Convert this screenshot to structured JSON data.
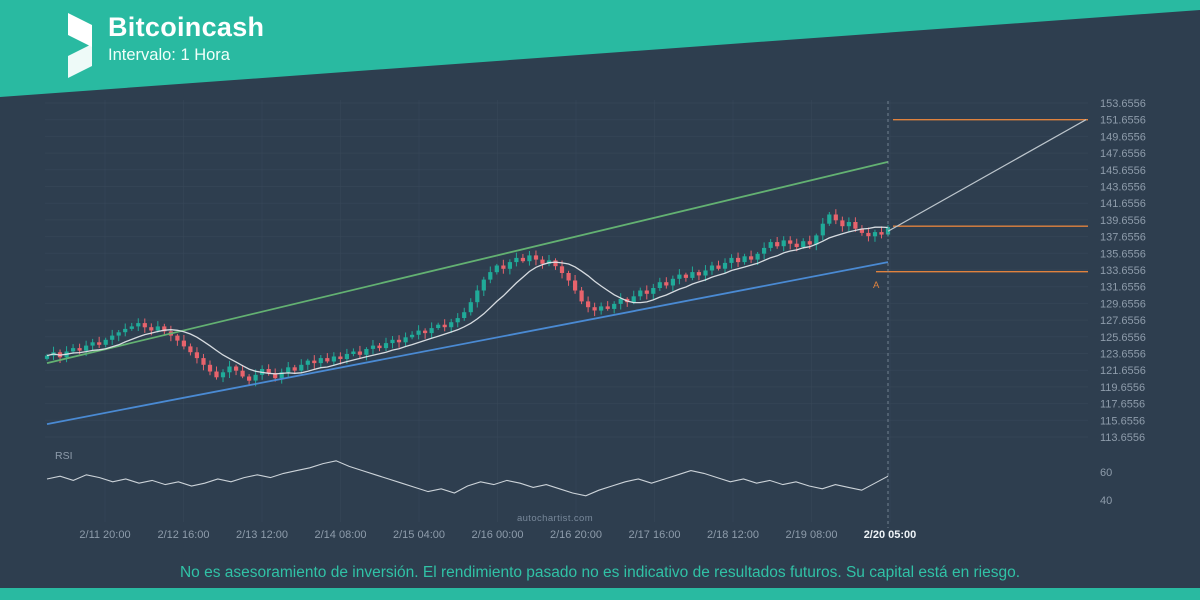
{
  "header": {
    "title": "Bitcoincash",
    "subtitle": "Intervalo: 1 Hora"
  },
  "watermark": "autochartist.com",
  "rsi_label": "RSI",
  "point_label": "A",
  "footer": {
    "disclaimer": "No es asesoramiento de inversión. El rendimiento pasado no es indicativo de resultados futuros. Su capital está en riesgo."
  },
  "colors": {
    "background": "#2e3e4f",
    "banner": "#29baa1",
    "candle_up": "#20ab99",
    "candle_down": "#e8636c",
    "trend_upper": "#63b172",
    "trend_lower": "#4a8ad3",
    "level_line": "#e0823e",
    "forecast": "#bcc5cc",
    "ma_line": "#dfe4e8",
    "rsi_line": "#ccd3d9",
    "axis_text": "#8e9cab",
    "axis_text_highlight": "#eef3f7",
    "grid": "#39495a",
    "divider": "#8b99a7",
    "watermark_text": "#78889a",
    "disclaimer_text": "#30c2a6"
  },
  "chart_data": {
    "type": "candlestick",
    "title": "Bitcoincash",
    "interval": "1 Hora",
    "price_axis": {
      "min": 113.6556,
      "max": 153.6556,
      "step": 2,
      "labels": [
        "153.6556",
        "151.6556",
        "149.6556",
        "147.6556",
        "145.6556",
        "143.6556",
        "141.6556",
        "139.6556",
        "137.6556",
        "135.6556",
        "133.6556",
        "131.6556",
        "129.6556",
        "127.6556",
        "125.6556",
        "123.6556",
        "121.6556",
        "119.6556",
        "117.6556",
        "115.6556",
        "113.6556"
      ]
    },
    "x_axis": {
      "labels": [
        "2/11 20:00",
        "2/12 16:00",
        "2/13 12:00",
        "2/14 08:00",
        "2/15 04:00",
        "2/16 00:00",
        "2/16 20:00",
        "2/17 16:00",
        "2/18 12:00",
        "2/19 08:00",
        "2/20 05:00"
      ],
      "highlight_last": true
    },
    "first_open": 123.0,
    "ma_window": 10,
    "closes": [
      123.4,
      123.8,
      123.2,
      123.9,
      124.3,
      124.0,
      124.6,
      125.0,
      124.7,
      125.3,
      125.8,
      126.2,
      126.6,
      126.9,
      127.3,
      126.8,
      126.4,
      126.9,
      126.3,
      125.8,
      125.2,
      124.5,
      123.8,
      123.1,
      122.3,
      121.5,
      120.8,
      121.4,
      122.1,
      121.6,
      120.9,
      120.4,
      121.1,
      121.8,
      121.3,
      120.7,
      121.4,
      122.0,
      121.6,
      122.3,
      122.8,
      122.5,
      123.1,
      122.7,
      123.3,
      123.0,
      123.6,
      123.9,
      123.5,
      124.2,
      124.6,
      124.3,
      124.9,
      125.3,
      125.0,
      125.6,
      125.9,
      126.4,
      126.1,
      126.7,
      127.1,
      126.8,
      127.4,
      127.9,
      128.6,
      129.8,
      131.2,
      132.5,
      133.4,
      134.2,
      133.8,
      134.6,
      135.1,
      134.7,
      135.4,
      134.9,
      134.4,
      134.8,
      134.1,
      133.3,
      132.4,
      131.2,
      129.9,
      129.2,
      128.8,
      129.3,
      129.0,
      129.6,
      130.2,
      129.8,
      130.5,
      131.2,
      130.8,
      131.5,
      132.2,
      131.8,
      132.6,
      133.1,
      132.7,
      133.4,
      133.0,
      133.6,
      134.2,
      133.8,
      134.5,
      135.1,
      134.6,
      135.3,
      134.9,
      135.6,
      136.3,
      137.0,
      136.5,
      137.2,
      136.8,
      136.4,
      137.1,
      136.7,
      137.8,
      139.2,
      140.3,
      139.6,
      138.9,
      139.4,
      138.6,
      138.1,
      137.7,
      138.2,
      137.9,
      138.8
    ],
    "channel": {
      "upper": {
        "start_price": 122.5,
        "end_price": 146.6
      },
      "lower": {
        "start_price": 115.2,
        "end_price": 134.6
      }
    },
    "levels": [
      {
        "price": 151.6556
      },
      {
        "price": 138.9
      },
      {
        "price": 133.45
      }
    ],
    "forecast": {
      "start_price": 138.3,
      "end_price": 151.6556
    },
    "rsi": {
      "ticks": [
        60,
        40
      ],
      "values": [
        55,
        57,
        54,
        58,
        56,
        53,
        55,
        52,
        54,
        51,
        53,
        50,
        52,
        55,
        53,
        56,
        58,
        56,
        59,
        61,
        63,
        66,
        68,
        64,
        61,
        58,
        55,
        52,
        49,
        46,
        48,
        45,
        50,
        53,
        51,
        54,
        52,
        49,
        51,
        48,
        45,
        43,
        47,
        50,
        53,
        55,
        52,
        55,
        58,
        61,
        59,
        56,
        53,
        55,
        52,
        54,
        51,
        53,
        50,
        48,
        51,
        49,
        47,
        52,
        57
      ]
    }
  }
}
